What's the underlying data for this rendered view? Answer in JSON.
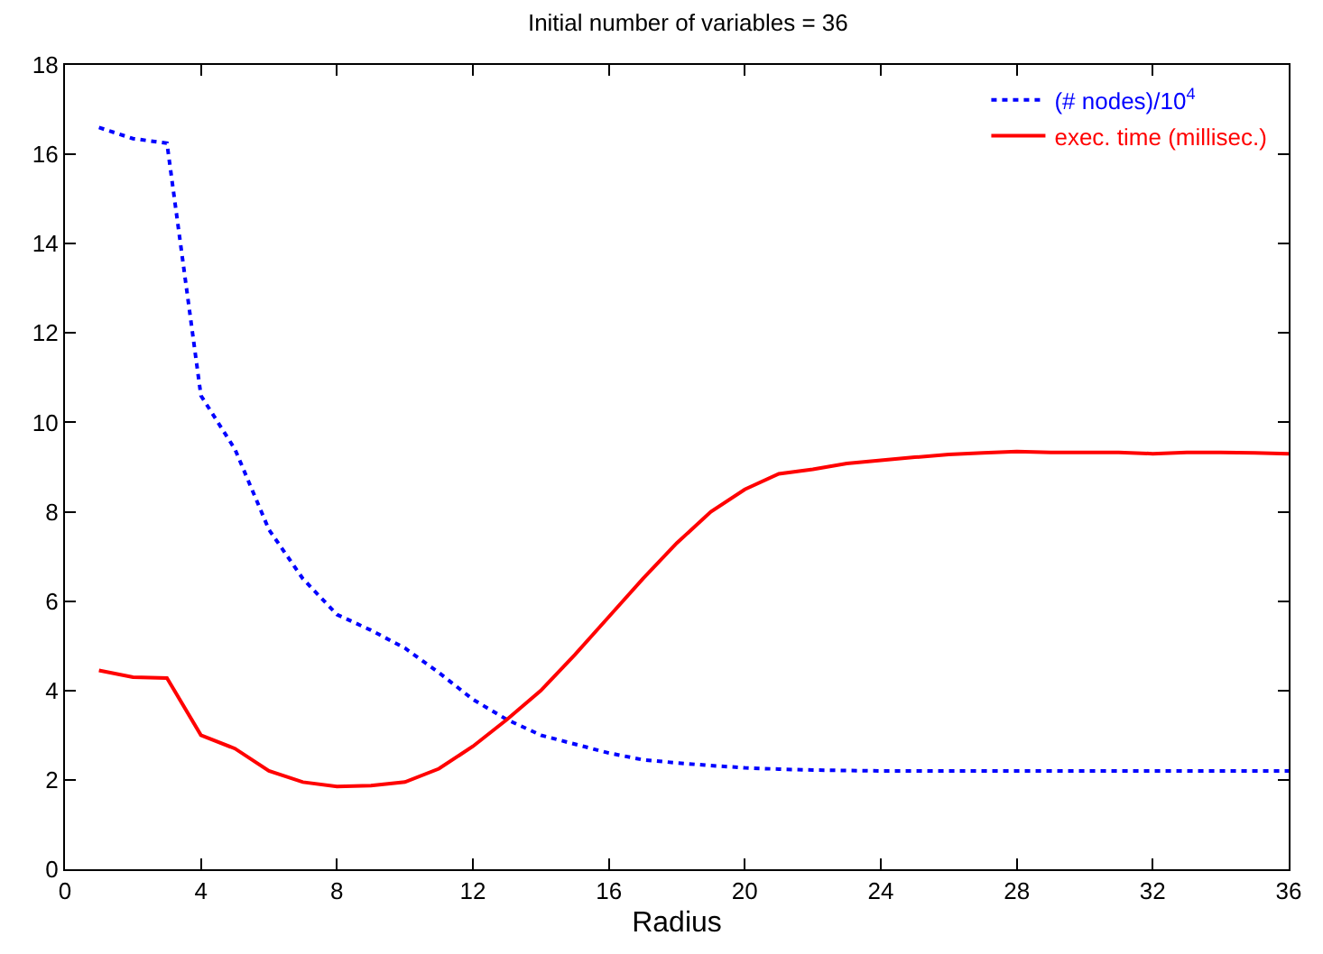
{
  "chart_data": {
    "type": "line",
    "title": "Initial number of variables = 36",
    "xlabel": "Radius",
    "x": [
      1,
      2,
      3,
      4,
      5,
      6,
      7,
      8,
      9,
      10,
      11,
      12,
      13,
      14,
      15,
      16,
      17,
      18,
      19,
      20,
      21,
      22,
      23,
      24,
      25,
      26,
      27,
      28,
      29,
      30,
      31,
      32,
      33,
      34,
      35,
      36
    ],
    "series": [
      {
        "name": "(# nodes)/10$^{4}$",
        "color": "#0000ff",
        "line_style": "dotted",
        "values": [
          16.6,
          16.35,
          16.25,
          10.6,
          9.4,
          7.6,
          6.5,
          5.7,
          5.35,
          4.95,
          4.4,
          3.8,
          3.35,
          3.0,
          2.8,
          2.6,
          2.45,
          2.38,
          2.32,
          2.27,
          2.24,
          2.22,
          2.21,
          2.2,
          2.2,
          2.2,
          2.2,
          2.2,
          2.2,
          2.2,
          2.2,
          2.2,
          2.2,
          2.2,
          2.2,
          2.2
        ]
      },
      {
        "name": "exec. time (millisec.)",
        "color": "#ff0000",
        "line_style": "solid",
        "values": [
          4.45,
          4.3,
          4.28,
          3.0,
          2.7,
          2.2,
          1.95,
          1.85,
          1.87,
          1.95,
          2.25,
          2.75,
          3.35,
          4.0,
          4.8,
          5.65,
          6.5,
          7.3,
          8.0,
          8.5,
          8.85,
          8.95,
          9.08,
          9.15,
          9.22,
          9.28,
          9.32,
          9.35,
          9.33,
          9.33,
          9.33,
          9.3,
          9.33,
          9.33,
          9.32,
          9.3
        ]
      }
    ],
    "xlim": [
      0,
      36
    ],
    "xticks": [
      0,
      4,
      8,
      12,
      16,
      20,
      24,
      28,
      32,
      36
    ],
    "ylim": [
      0,
      18
    ],
    "yticks": [
      0,
      2,
      4,
      6,
      8,
      10,
      12,
      14,
      16,
      18
    ],
    "legend": "top right",
    "marker": "none"
  }
}
